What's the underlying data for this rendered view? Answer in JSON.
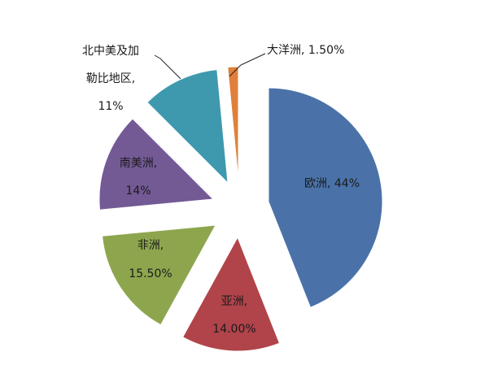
{
  "chart_data": {
    "type": "pie",
    "title": "",
    "exploded": true,
    "start_angle_deg": 0,
    "direction": "clockwise",
    "categories": [
      "欧洲",
      "亚洲",
      "非洲",
      "南美洲",
      "北中美及加勒比地区",
      "大洋洲"
    ],
    "values": [
      44,
      14.0,
      15.5,
      14,
      11,
      1.5
    ],
    "labels": [
      "欧洲, 44%",
      "亚洲, 14.00%",
      "非洲, 15.50%",
      "南美洲, 14%",
      "北中美及加勒比地区, 11%",
      "大洋洲, 1.50%"
    ],
    "colors": [
      "#4A72A8",
      "#B0444A",
      "#8DA64E",
      "#735A95",
      "#3E98AE",
      "#E07F3A"
    ],
    "legend": "none"
  },
  "slices": [
    {
      "name": "欧洲",
      "label_lines": [
        "欧洲, 44%"
      ],
      "color": "#4A72A8"
    },
    {
      "name": "亚洲",
      "label_lines": [
        "亚洲,",
        "14.00%"
      ],
      "color": "#B0444A"
    },
    {
      "name": "非洲",
      "label_lines": [
        "非洲,",
        "15.50%"
      ],
      "color": "#8DA64E"
    },
    {
      "name": "南美洲",
      "label_lines": [
        "南美洲,",
        "14%"
      ],
      "color": "#735A95"
    },
    {
      "name": "北中美及加勒比地区",
      "label_lines": [
        "北中美及加",
        "勒比地区,",
        "11%"
      ],
      "color": "#3E98AE"
    },
    {
      "name": "大洋洲",
      "label_lines": [
        "大洋洲, 1.50%"
      ],
      "color": "#E07F3A"
    }
  ]
}
